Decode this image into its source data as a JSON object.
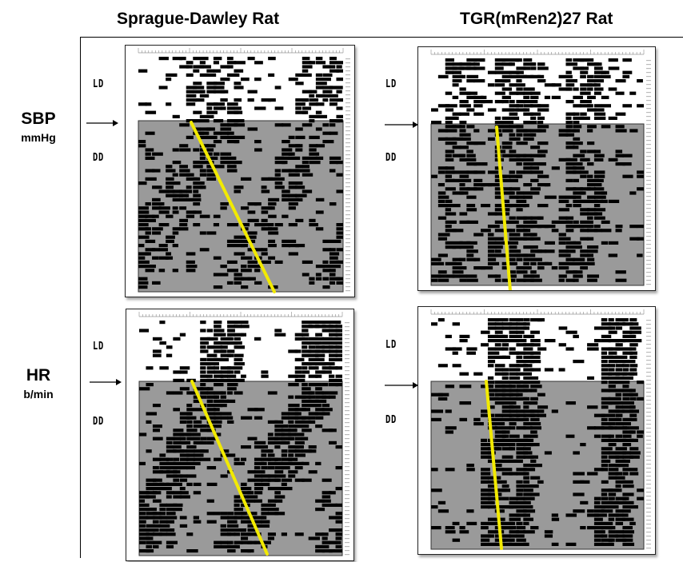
{
  "columns": [
    "Sprague-Dawley Rat",
    "TGR(mRen2)27 Rat"
  ],
  "rows": [
    {
      "label": "SBP",
      "unit": "mmHg"
    },
    {
      "label": "HR",
      "unit": "b/min"
    }
  ],
  "conditions": {
    "ld": "LD",
    "dd": "DD"
  },
  "colors": {
    "dd_shade": "#9a9a9a",
    "activity": "#000000",
    "trend_line": "#f2ea00"
  }
}
